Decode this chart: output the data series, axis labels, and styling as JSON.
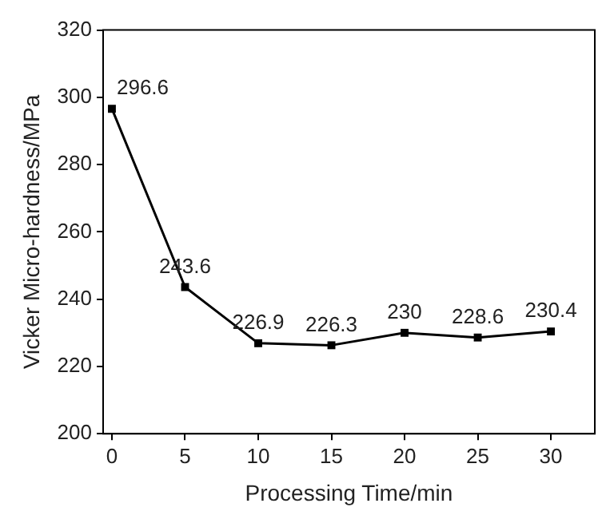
{
  "chart_data": {
    "type": "line",
    "xlabel": "Processing Time/min",
    "ylabel": "Vicker Micro-hardness/MPa",
    "x": [
      0,
      5,
      10,
      15,
      20,
      25,
      30
    ],
    "series": [
      {
        "color": "#000000",
        "values": [
          296.6,
          243.6,
          226.9,
          226.3,
          230,
          228.6,
          230.4
        ]
      }
    ],
    "xlim": [
      -0.6,
      33
    ],
    "xticks": [
      0,
      5,
      10,
      15,
      20,
      25,
      30
    ],
    "ylim": [
      200,
      320
    ],
    "yticks": [
      200,
      220,
      240,
      260,
      280,
      300,
      320
    ],
    "grid": false,
    "legend": false,
    "marker": "square",
    "line_style": "solid",
    "data_labels": true
  }
}
